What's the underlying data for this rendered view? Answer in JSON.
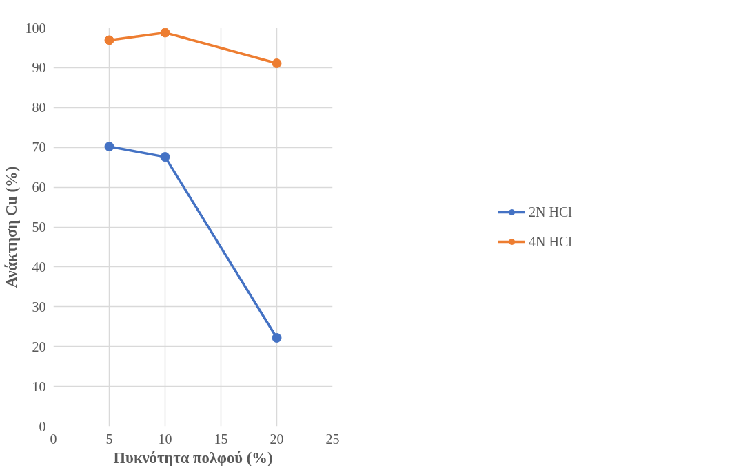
{
  "chart_data": {
    "type": "line",
    "xlabel": "Πυκνότητα πολφού (%)",
    "ylabel": "Ανάκτηση Cu (%)",
    "x": [
      5,
      10,
      20
    ],
    "series": [
      {
        "name": "2N HCl",
        "color": "#4472c4",
        "values": [
          70.2,
          67.6,
          22.2
        ]
      },
      {
        "name": "4N HCl",
        "color": "#ed7d31",
        "values": [
          96.9,
          98.8,
          91.1
        ]
      }
    ],
    "xlim": [
      0,
      25
    ],
    "xticks": [
      0,
      5,
      10,
      15,
      20,
      25
    ],
    "ylim": [
      0,
      100
    ],
    "yticks": [
      0,
      10,
      20,
      30,
      40,
      50,
      60,
      70,
      80,
      90,
      100
    ],
    "grid": true,
    "legend": "right",
    "marker": "circle",
    "line_style": "solid"
  }
}
